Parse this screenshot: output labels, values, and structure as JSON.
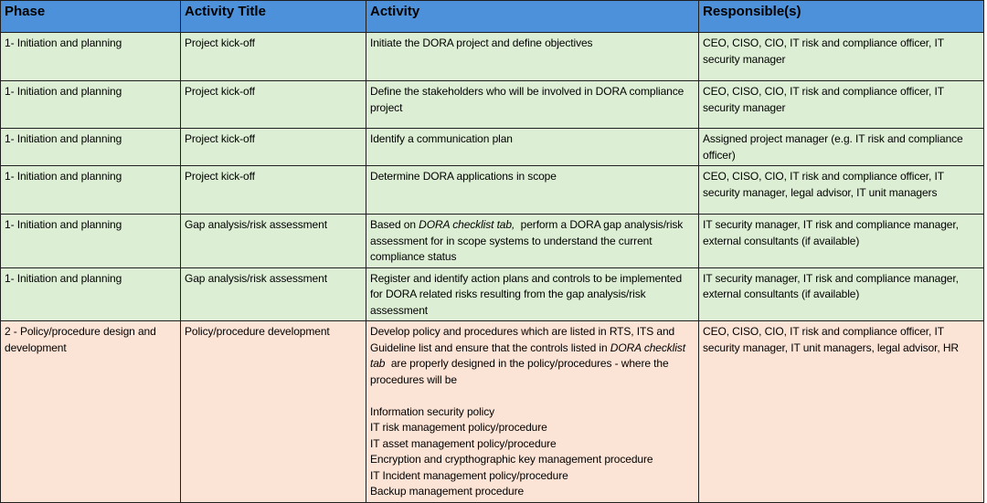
{
  "colors": {
    "header_bg": "#4d91da",
    "phase1_row_bg": "#dceed3",
    "phase2_row_bg": "#fbe3d5",
    "grid_border": "#1f1f1f",
    "header_text": "#000000",
    "body_text": "#000000"
  },
  "table": {
    "columns": [
      {
        "key": "phase",
        "label": "Phase"
      },
      {
        "key": "activity_title",
        "label": "Activity Title"
      },
      {
        "key": "activity",
        "label": "Activity"
      },
      {
        "key": "responsible",
        "label": "Responsible(s)"
      }
    ],
    "rows": [
      {
        "group": "phase1",
        "phase": "1- Initiation and planning",
        "activity_title": "Project kick-off",
        "activity": "Initiate the DORA project and define objectives",
        "responsible": "CEO, CISO, CIO, IT risk and compliance officer, IT security manager"
      },
      {
        "group": "phase1",
        "phase": "1- Initiation and planning",
        "activity_title": "Project kick-off",
        "activity": "Define the stakeholders who will be involved in DORA compliance project",
        "responsible": "CEO, CISO, CIO, IT risk and compliance officer, IT security manager"
      },
      {
        "group": "phase1",
        "phase": "1- Initiation and planning",
        "activity_title": "Project kick-off",
        "activity": "Identify a communication plan",
        "responsible": "Assigned project manager (e.g. IT risk and compliance officer)"
      },
      {
        "group": "phase1",
        "phase": "1- Initiation and planning",
        "activity_title": "Project kick-off",
        "activity": "Determine DORA applications in scope",
        "responsible": "CEO, CISO, CIO, IT risk and compliance officer, IT security manager, legal advisor, IT unit managers"
      },
      {
        "group": "phase1",
        "phase": "1- Initiation and planning",
        "activity_title": "Gap analysis/risk assessment",
        "activity": [
          {
            "t": "Based on ",
            "i": false
          },
          {
            "t": "DORA checklist tab,",
            "i": true
          },
          {
            "t": "  perform a DORA gap analysis/risk assessment for in scope systems to understand the current compliance status",
            "i": false
          }
        ],
        "responsible": "IT security manager, IT risk and compliance manager, external consultants (if available)"
      },
      {
        "group": "phase1",
        "phase": "1- Initiation and planning",
        "activity_title": "Gap analysis/risk assessment",
        "activity": "Register and identify action plans and controls to be implemented for DORA related risks resulting from the gap analysis/risk assessment",
        "responsible": "IT security manager, IT risk and compliance manager, external consultants (if available)"
      },
      {
        "group": "phase2",
        "phase": "2 - Policy/procedure design and development",
        "activity_title": "Policy/procedure development",
        "activity": [
          {
            "t": "Develop policy and procedures which are listed in RTS, ITS and Guideline list and ensure that the controls listed in ",
            "i": false
          },
          {
            "t": "DORA checklist tab",
            "i": true
          },
          {
            "t": "  are properly designed in the policy/procedures - where the procedures will be\n\nInformation security policy\nIT risk management policy/procedure\nIT asset management policy/procedure\nEncryption and crypthographic key management procedure\nIT Incident management policy/procedure\nBackup management procedure",
            "i": false
          }
        ],
        "responsible": "CEO, CISO, CIO, IT risk and compliance officer, IT security manager, IT unit managers, legal advisor, HR"
      }
    ]
  }
}
